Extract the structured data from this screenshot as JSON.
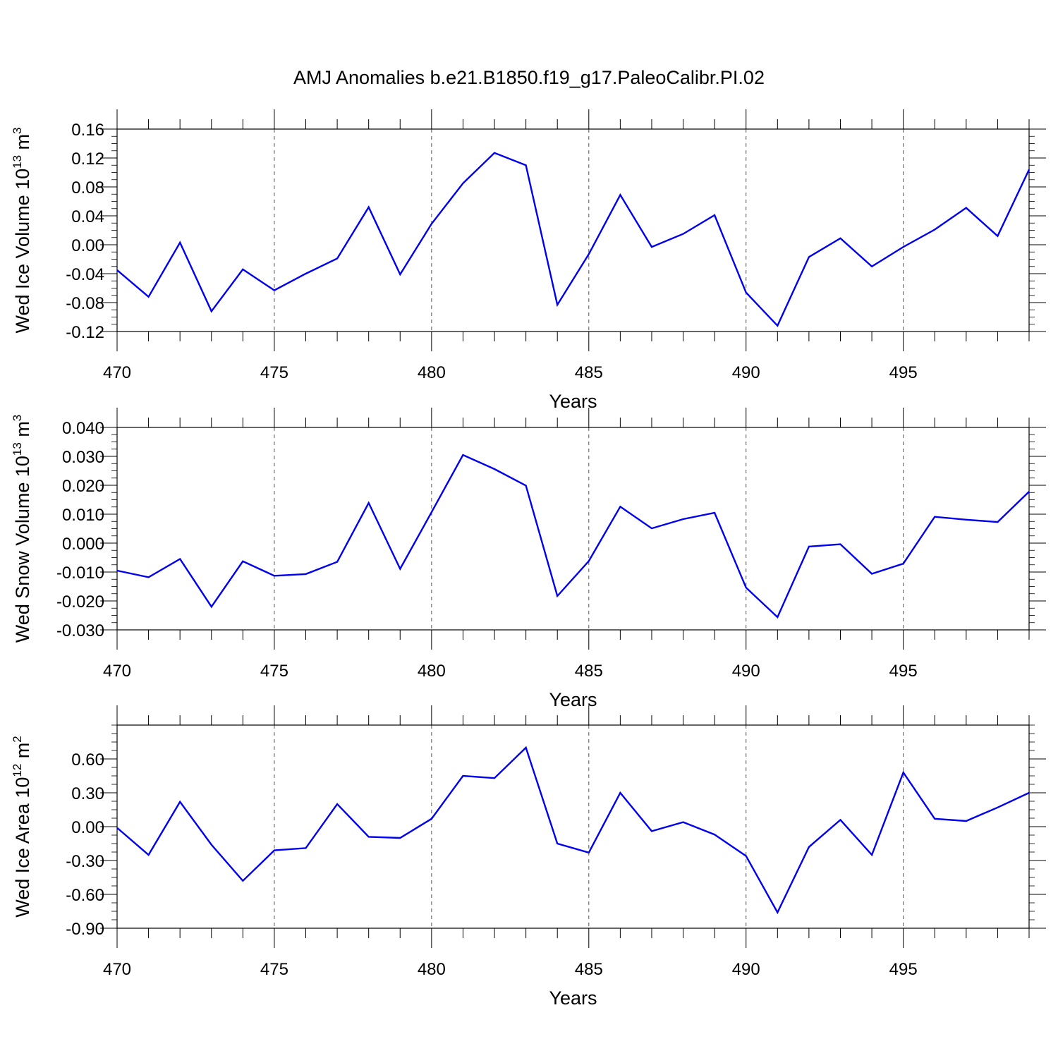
{
  "title": "AMJ Anomalies b.e21.B1850.f19_g17.PaleoCalibr.PI.02",
  "colors": {
    "line": "#0000ee",
    "axis": "#000000",
    "grid": "#555555"
  },
  "chart_data": [
    {
      "type": "line",
      "xlabel": "Years",
      "ylabel": {
        "main": "Wed Ice Volume 10",
        "exp": "13",
        "unit": " m",
        "unit_exp": "3"
      },
      "xlim": [
        470,
        499
      ],
      "ylim": [
        -0.12,
        0.16
      ],
      "x_ticks": [
        470,
        475,
        480,
        485,
        490,
        495
      ],
      "y_ticks": [
        "-0.12",
        "-0.08",
        "-0.04",
        "0.00",
        "0.04",
        "0.08",
        "0.12",
        "0.16"
      ],
      "x_grid": [
        475,
        480,
        485,
        490,
        495
      ],
      "x": [
        470,
        471,
        472,
        473,
        474,
        475,
        476,
        477,
        478,
        479,
        480,
        481,
        482,
        483,
        484,
        485,
        486,
        487,
        488,
        489,
        490,
        491,
        492,
        493,
        494,
        495,
        496,
        497,
        498,
        499
      ],
      "values": [
        -0.035,
        -0.072,
        0.003,
        -0.092,
        -0.034,
        -0.063,
        -0.04,
        -0.019,
        0.052,
        -0.041,
        0.029,
        0.085,
        0.127,
        0.11,
        -0.083,
        -0.013,
        0.069,
        -0.003,
        0.015,
        0.041,
        -0.066,
        -0.112,
        -0.017,
        0.009,
        -0.03,
        -0.003,
        0.021,
        0.051,
        0.012,
        0.104
      ]
    },
    {
      "type": "line",
      "xlabel": "Years",
      "ylabel": {
        "main": "Wed Snow Volume 10",
        "exp": "13",
        "unit": " m",
        "unit_exp": "3"
      },
      "xlim": [
        470,
        499
      ],
      "ylim": [
        -0.03,
        0.04
      ],
      "x_ticks": [
        470,
        475,
        480,
        485,
        490,
        495
      ],
      "y_ticks": [
        "-0.030",
        "-0.020",
        "-0.010",
        "0.000",
        "0.010",
        "0.020",
        "0.030",
        "0.040"
      ],
      "x_grid": [
        475,
        480,
        485,
        490,
        495
      ],
      "x": [
        470,
        471,
        472,
        473,
        474,
        475,
        476,
        477,
        478,
        479,
        480,
        481,
        482,
        483,
        484,
        485,
        486,
        487,
        488,
        489,
        490,
        491,
        492,
        493,
        494,
        495,
        496,
        497,
        498,
        499
      ],
      "values": [
        -0.0095,
        -0.0118,
        -0.0055,
        -0.022,
        -0.0063,
        -0.0113,
        -0.0107,
        -0.0065,
        0.0139,
        -0.0089,
        0.0107,
        0.0305,
        0.0256,
        0.0199,
        -0.0183,
        -0.0062,
        0.0126,
        0.0051,
        0.0083,
        0.0105,
        -0.0154,
        -0.0256,
        -0.0012,
        -0.0004,
        -0.0106,
        -0.0071,
        0.0091,
        0.0081,
        0.0073,
        0.0178
      ]
    },
    {
      "type": "line",
      "xlabel": "Years",
      "ylabel": {
        "main": "Wed Ice Area 10",
        "exp": "12",
        "unit": " m",
        "unit_exp": "2"
      },
      "xlim": [
        470,
        499
      ],
      "ylim": [
        -0.9,
        0.9
      ],
      "x_ticks": [
        470,
        475,
        480,
        485,
        490,
        495
      ],
      "y_ticks": [
        "-0.90",
        "-0.60",
        "-0.30",
        "0.00",
        "0.30",
        "0.60"
      ],
      "x_grid": [
        475,
        480,
        485,
        490,
        495
      ],
      "x": [
        470,
        471,
        472,
        473,
        474,
        475,
        476,
        477,
        478,
        479,
        480,
        481,
        482,
        483,
        484,
        485,
        486,
        487,
        488,
        489,
        490,
        491,
        492,
        493,
        494,
        495,
        496,
        497,
        498,
        499
      ],
      "values": [
        -0.01,
        -0.25,
        0.22,
        -0.16,
        -0.48,
        -0.21,
        -0.19,
        0.2,
        -0.09,
        -0.1,
        0.07,
        0.45,
        0.43,
        0.7,
        -0.15,
        -0.23,
        0.3,
        -0.04,
        0.04,
        -0.07,
        -0.26,
        -0.76,
        -0.18,
        0.06,
        -0.25,
        0.48,
        0.07,
        0.05,
        0.17,
        0.3
      ]
    }
  ]
}
